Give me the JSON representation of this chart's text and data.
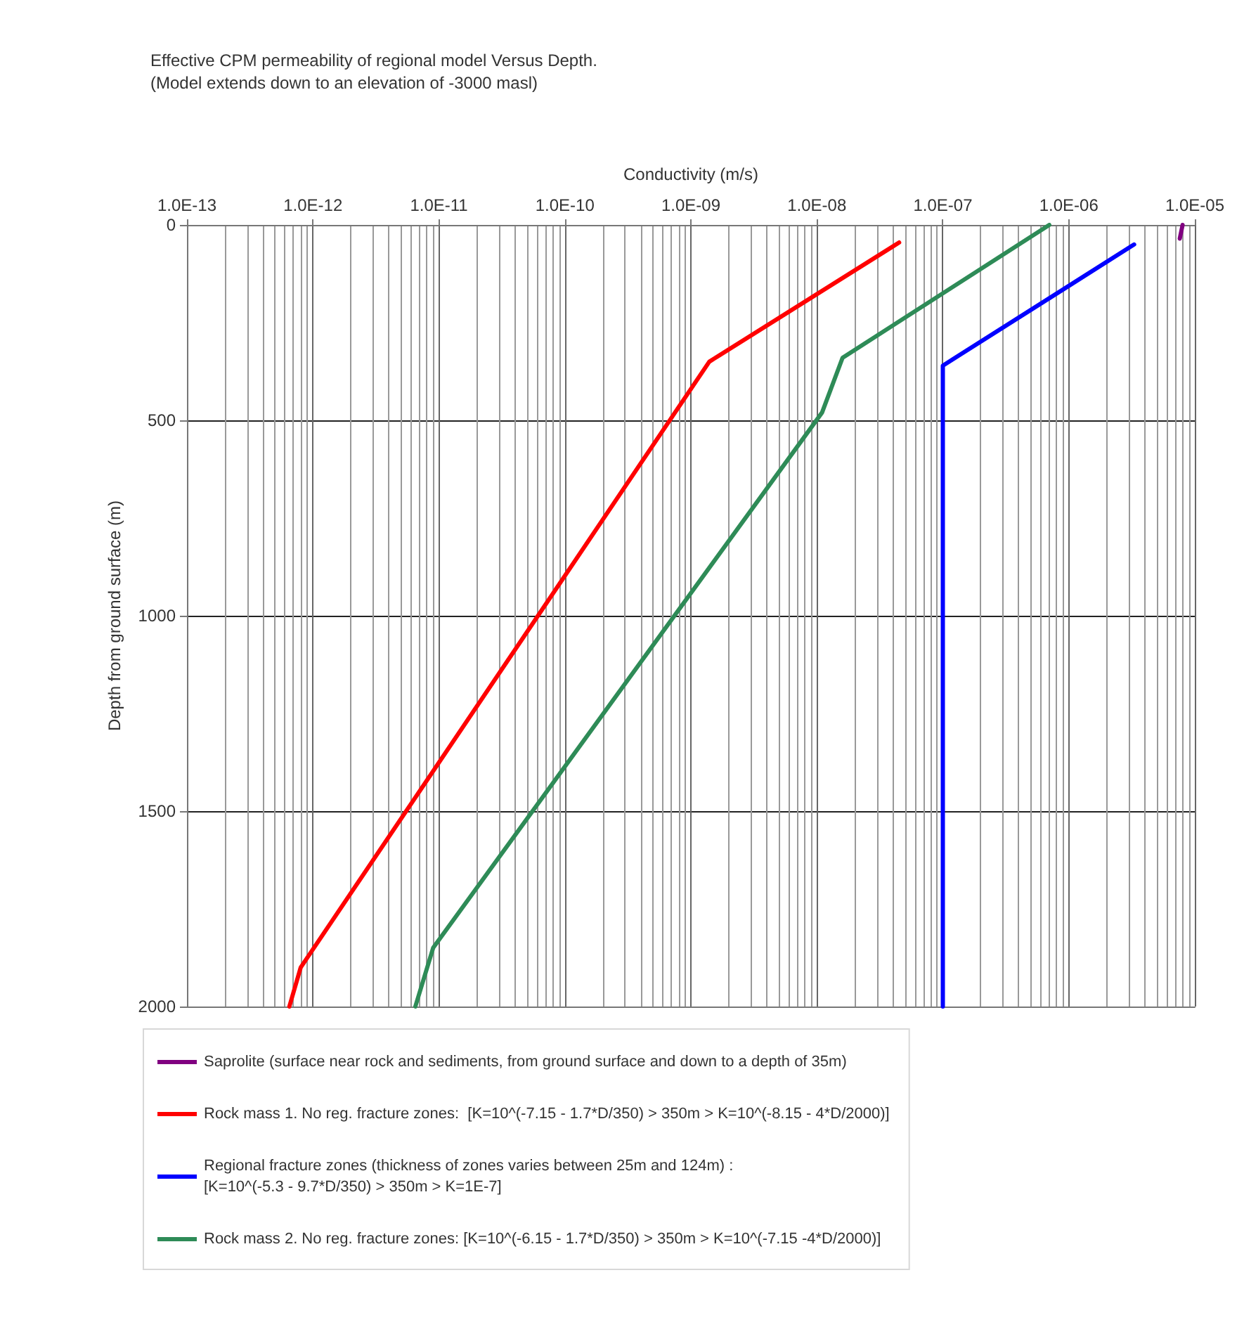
{
  "chart_data": {
    "type": "line",
    "title": "Effective CPM permeability of regional model Versus Depth.",
    "subtitle": "(Model extends down to an elevation of -3000 masl)",
    "xlabel": "Conductivity (m/s)",
    "ylabel": "Depth from ground surface (m)",
    "log": "x",
    "xlim": [
      1e-13,
      1e-05
    ],
    "xticks": [
      {
        "value": 1e-13,
        "label": "1.0E-13"
      },
      {
        "value": 1e-12,
        "label": "1.0E-12"
      },
      {
        "value": 1e-11,
        "label": "1.0E-11"
      },
      {
        "value": 1e-10,
        "label": "1.0E-10"
      },
      {
        "value": 1e-09,
        "label": "1.0E-09"
      },
      {
        "value": 1e-08,
        "label": "1.0E-08"
      },
      {
        "value": 1e-07,
        "label": "1.0E-07"
      },
      {
        "value": 1e-06,
        "label": "1.0E-06"
      },
      {
        "value": 1e-05,
        "label": "1.0E-05"
      }
    ],
    "ylim": [
      2000,
      0
    ],
    "yticks": [
      0,
      500,
      1000,
      1500,
      2000
    ],
    "grid": true,
    "legend": "bottom",
    "marker": "none",
    "series": [
      {
        "name": "Saprolite (surface near rock and sediments, from ground surface and down to a depth of 35m)",
        "color": "#800080",
        "x": [
          8e-06,
          7.6e-06
        ],
        "values": [
          0,
          35
        ]
      },
      {
        "name": "Rock mass 1. No reg. fracture zones:  [K=10^(-7.15 - 1.7*D/350) > 350m > K=10^(-8.15 - 4*D/2000)]",
        "color": "#ff0000",
        "x": [
          4.5e-08,
          1.4e-09,
          8e-13,
          6.5e-13
        ],
        "values": [
          45,
          350,
          1900,
          2000
        ]
      },
      {
        "name": "Regional fracture zones (thickness of zones varies between 25m and 124m) :\n[K=10^(-5.3 - 9.7*D/350) > 350m > K=1E-7]",
        "color": "#0000ff",
        "x": [
          3.3e-06,
          1e-07,
          1e-07
        ],
        "values": [
          50,
          360,
          2000
        ]
      },
      {
        "name": "Rock mass 2. No reg. fracture zones: [K=10^(-6.15 - 1.7*D/350) > 350m > K=10^(-7.15 -4*D/2000)]",
        "color": "#2e8b57",
        "x": [
          7e-07,
          1.6e-08,
          1.1e-08,
          9e-12,
          6.5e-12
        ],
        "values": [
          0,
          340,
          480,
          1850,
          2000
        ]
      }
    ]
  }
}
